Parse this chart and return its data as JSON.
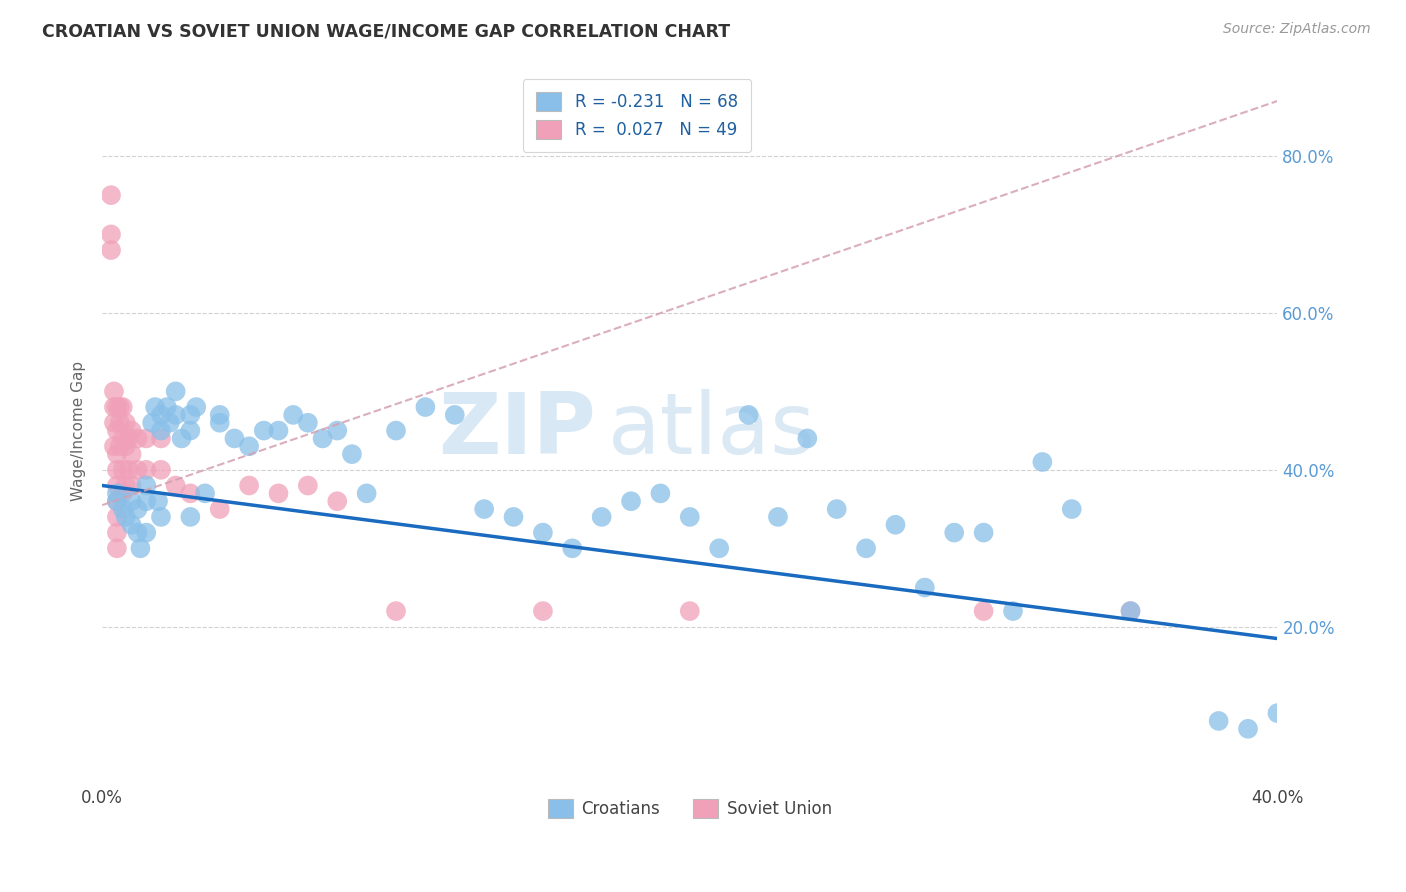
{
  "title": "CROATIAN VS SOVIET UNION WAGE/INCOME GAP CORRELATION CHART",
  "source": "Source: ZipAtlas.com",
  "ylabel": "Wage/Income Gap",
  "watermark_zip": "ZIP",
  "watermark_atlas": "atlas",
  "croatians_color": "#89bfe8",
  "soviet_color": "#f0a0b8",
  "trend_blue_color": "#1a6bbf",
  "trend_pink_color": "#d4a0b0",
  "background_color": "#ffffff",
  "grid_color": "#cccccc",
  "xlim": [
    0.0,
    0.4
  ],
  "ylim": [
    0.0,
    0.9
  ],
  "yticks": [
    0.2,
    0.4,
    0.6,
    0.8
  ],
  "ytick_labels": [
    "20.0%",
    "40.0%",
    "60.0%",
    "80.0%"
  ],
  "xticks": [
    0.0,
    0.1,
    0.2,
    0.3,
    0.4
  ],
  "xtick_labels": [
    "0.0%",
    "",
    "",
    "",
    "40.0%"
  ],
  "legend_r_blue": "R = -0.231",
  "legend_n_blue": "N = 68",
  "legend_r_pink": "R =  0.027",
  "legend_n_pink": "N = 49",
  "croatians_x": [
    0.005,
    0.005,
    0.007,
    0.008,
    0.01,
    0.01,
    0.012,
    0.012,
    0.013,
    0.015,
    0.015,
    0.015,
    0.017,
    0.018,
    0.019,
    0.02,
    0.02,
    0.02,
    0.022,
    0.023,
    0.025,
    0.025,
    0.027,
    0.03,
    0.03,
    0.03,
    0.032,
    0.035,
    0.04,
    0.04,
    0.045,
    0.05,
    0.055,
    0.06,
    0.065,
    0.07,
    0.075,
    0.08,
    0.085,
    0.09,
    0.1,
    0.11,
    0.12,
    0.13,
    0.14,
    0.15,
    0.16,
    0.17,
    0.18,
    0.19,
    0.2,
    0.21,
    0.22,
    0.23,
    0.24,
    0.25,
    0.26,
    0.27,
    0.28,
    0.29,
    0.3,
    0.31,
    0.32,
    0.33,
    0.35,
    0.38,
    0.4,
    0.39
  ],
  "croatians_y": [
    0.37,
    0.36,
    0.35,
    0.34,
    0.36,
    0.33,
    0.35,
    0.32,
    0.3,
    0.38,
    0.36,
    0.32,
    0.46,
    0.48,
    0.36,
    0.47,
    0.45,
    0.34,
    0.48,
    0.46,
    0.5,
    0.47,
    0.44,
    0.47,
    0.45,
    0.34,
    0.48,
    0.37,
    0.47,
    0.46,
    0.44,
    0.43,
    0.45,
    0.45,
    0.47,
    0.46,
    0.44,
    0.45,
    0.42,
    0.37,
    0.45,
    0.48,
    0.47,
    0.35,
    0.34,
    0.32,
    0.3,
    0.34,
    0.36,
    0.37,
    0.34,
    0.3,
    0.47,
    0.34,
    0.44,
    0.35,
    0.3,
    0.33,
    0.25,
    0.32,
    0.32,
    0.22,
    0.41,
    0.35,
    0.22,
    0.08,
    0.09,
    0.07
  ],
  "soviet_x": [
    0.003,
    0.003,
    0.003,
    0.004,
    0.004,
    0.004,
    0.004,
    0.005,
    0.005,
    0.005,
    0.005,
    0.005,
    0.005,
    0.005,
    0.005,
    0.005,
    0.006,
    0.006,
    0.006,
    0.007,
    0.007,
    0.007,
    0.007,
    0.008,
    0.008,
    0.008,
    0.009,
    0.009,
    0.01,
    0.01,
    0.01,
    0.012,
    0.012,
    0.015,
    0.015,
    0.02,
    0.02,
    0.025,
    0.03,
    0.04,
    0.05,
    0.06,
    0.07,
    0.08,
    0.1,
    0.15,
    0.2,
    0.3,
    0.35
  ],
  "soviet_y": [
    0.75,
    0.7,
    0.68,
    0.5,
    0.48,
    0.46,
    0.43,
    0.48,
    0.45,
    0.42,
    0.4,
    0.38,
    0.36,
    0.34,
    0.32,
    0.3,
    0.48,
    0.46,
    0.43,
    0.48,
    0.44,
    0.4,
    0.37,
    0.46,
    0.43,
    0.38,
    0.44,
    0.4,
    0.45,
    0.42,
    0.38,
    0.44,
    0.4,
    0.44,
    0.4,
    0.44,
    0.4,
    0.38,
    0.37,
    0.35,
    0.38,
    0.37,
    0.38,
    0.36,
    0.22,
    0.22,
    0.22,
    0.22,
    0.22
  ],
  "blue_trend_x0": 0.0,
  "blue_trend_y0": 0.38,
  "blue_trend_x1": 0.4,
  "blue_trend_y1": 0.185,
  "pink_trend_x0": 0.0,
  "pink_trend_y0": 0.355,
  "pink_trend_x1": 0.4,
  "pink_trend_y1": 0.87
}
